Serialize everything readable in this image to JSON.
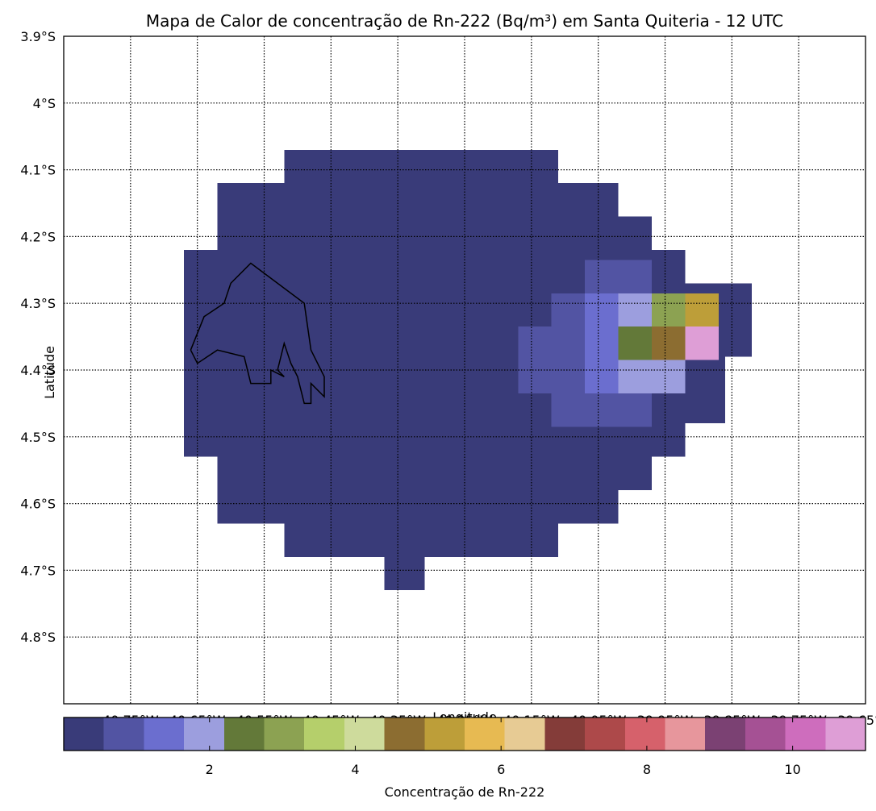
{
  "chart_data": {
    "type": "heatmap",
    "title": "Mapa de Calor de concentração de Rn-222 (Bq/m³) em Santa Quiteria - 12 UTC",
    "xlabel": "Longitude",
    "ylabel": "Latitude",
    "xlim": [
      -40.85,
      -39.65
    ],
    "ylim": [
      -4.9,
      -3.9
    ],
    "grid": true,
    "x_ticks": [
      {
        "value": -40.75,
        "label": "40.75°W"
      },
      {
        "value": -40.65,
        "label": "40.65°W"
      },
      {
        "value": -40.55,
        "label": "40.55°W"
      },
      {
        "value": -40.45,
        "label": "40.45°W"
      },
      {
        "value": -40.35,
        "label": "40.35°W"
      },
      {
        "value": -40.25,
        "label": "40.25°W"
      },
      {
        "value": -40.15,
        "label": "40.15°W"
      },
      {
        "value": -40.05,
        "label": "40.05°W"
      },
      {
        "value": -39.95,
        "label": "39.95°W"
      },
      {
        "value": -39.85,
        "label": "39.85°W"
      },
      {
        "value": -39.75,
        "label": "39.75°W"
      },
      {
        "value": -39.65,
        "label": "39.65°W"
      }
    ],
    "y_ticks": [
      {
        "value": -3.9,
        "label": "3.9°S"
      },
      {
        "value": -4.0,
        "label": "4°S"
      },
      {
        "value": -4.1,
        "label": "4.1°S"
      },
      {
        "value": -4.2,
        "label": "4.2°S"
      },
      {
        "value": -4.3,
        "label": "4.3°S"
      },
      {
        "value": -4.4,
        "label": "4.4°S"
      },
      {
        "value": -4.5,
        "label": "4.5°S"
      },
      {
        "value": -4.6,
        "label": "4.6°S"
      },
      {
        "value": -4.7,
        "label": "4.7°S"
      },
      {
        "value": -4.8,
        "label": "4.8°S"
      }
    ],
    "cells": [
      {
        "lon0": -40.52,
        "lon1": -40.11,
        "lat_top": -4.07,
        "lat_bot": -4.12,
        "value": 0.3
      },
      {
        "lon0": -40.62,
        "lon1": -40.02,
        "lat_top": -4.12,
        "lat_bot": -4.17,
        "value": 0.3
      },
      {
        "lon0": -40.62,
        "lon1": -39.97,
        "lat_top": -4.17,
        "lat_bot": -4.22,
        "value": 0.3
      },
      {
        "lon0": -40.67,
        "lon1": -39.92,
        "lat_top": -4.22,
        "lat_bot": -4.27,
        "value": 0.3
      },
      {
        "lon0": -40.67,
        "lon1": -39.82,
        "lat_top": -4.27,
        "lat_bot": -4.38,
        "value": 0.3
      },
      {
        "lon0": -40.67,
        "lon1": -39.86,
        "lat_top": -4.38,
        "lat_bot": -4.43,
        "value": 0.3
      },
      {
        "lon0": -40.67,
        "lon1": -39.86,
        "lat_top": -4.43,
        "lat_bot": -4.48,
        "value": 0.3
      },
      {
        "lon0": -40.67,
        "lon1": -39.92,
        "lat_top": -4.48,
        "lat_bot": -4.53,
        "value": 0.3
      },
      {
        "lon0": -40.62,
        "lon1": -39.97,
        "lat_top": -4.53,
        "lat_bot": -4.58,
        "value": 0.3
      },
      {
        "lon0": -40.62,
        "lon1": -40.02,
        "lat_top": -4.58,
        "lat_bot": -4.63,
        "value": 0.3
      },
      {
        "lon0": -40.52,
        "lon1": -40.11,
        "lat_top": -4.63,
        "lat_bot": -4.68,
        "value": 0.3
      },
      {
        "lon0": -40.37,
        "lon1": -40.31,
        "lat_top": -4.68,
        "lat_bot": -4.73,
        "value": 0.3
      },
      {
        "lon0": -40.07,
        "lon1": -39.97,
        "lat_top": -4.235,
        "lat_bot": -4.285,
        "value": 0.9
      },
      {
        "lon0": -40.12,
        "lon1": -40.07,
        "lat_top": -4.285,
        "lat_bot": -4.335,
        "value": 0.9
      },
      {
        "lon0": -40.17,
        "lon1": -40.07,
        "lat_top": -4.335,
        "lat_bot": -4.385,
        "value": 0.9
      },
      {
        "lon0": -40.17,
        "lon1": -40.07,
        "lat_top": -4.385,
        "lat_bot": -4.435,
        "value": 0.9
      },
      {
        "lon0": -40.12,
        "lon1": -39.97,
        "lat_top": -4.435,
        "lat_bot": -4.485,
        "value": 0.9
      },
      {
        "lon0": -40.07,
        "lon1": -40.02,
        "lat_top": -4.285,
        "lat_bot": -4.335,
        "value": 1.5
      },
      {
        "lon0": -40.07,
        "lon1": -40.02,
        "lat_top": -4.335,
        "lat_bot": -4.385,
        "value": 1.5
      },
      {
        "lon0": -40.07,
        "lon1": -40.02,
        "lat_top": -4.385,
        "lat_bot": -4.435,
        "value": 1.5
      },
      {
        "lon0": -39.97,
        "lon1": -39.92,
        "lat_top": -4.385,
        "lat_bot": -4.435,
        "value": 1.5
      },
      {
        "lon0": -40.02,
        "lon1": -39.97,
        "lat_top": -4.285,
        "lat_bot": -4.335,
        "value": 2.0
      },
      {
        "lon0": -39.92,
        "lon1": -39.87,
        "lat_top": -4.335,
        "lat_bot": -4.385,
        "value": 2.0
      },
      {
        "lon0": -40.02,
        "lon1": -39.97,
        "lat_top": -4.385,
        "lat_bot": -4.435,
        "value": 2.0
      },
      {
        "lon0": -39.97,
        "lon1": -39.92,
        "lat_top": -4.385,
        "lat_bot": -4.435,
        "value": 2.0
      },
      {
        "lon0": -40.02,
        "lon1": -39.97,
        "lat_top": -4.335,
        "lat_bot": -4.385,
        "value": 2.6
      },
      {
        "lon0": -39.97,
        "lon1": -39.92,
        "lat_top": -4.285,
        "lat_bot": -4.335,
        "value": 3.1
      },
      {
        "lon0": -39.97,
        "lon1": -39.92,
        "lat_top": -4.335,
        "lat_bot": -4.385,
        "value": 4.8
      },
      {
        "lon0": -39.92,
        "lon1": -39.87,
        "lat_top": -4.285,
        "lat_bot": -4.335,
        "value": 5.3
      },
      {
        "lon0": -39.92,
        "lon1": -39.87,
        "lat_top": -4.335,
        "lat_bot": -4.385,
        "value": 10.9
      }
    ],
    "outline": [
      [
        -40.66,
        -4.37
      ],
      [
        -40.64,
        -4.32
      ],
      [
        -40.61,
        -4.3
      ],
      [
        -40.6,
        -4.27
      ],
      [
        -40.57,
        -4.24
      ],
      [
        -40.49,
        -4.3
      ],
      [
        -40.48,
        -4.37
      ],
      [
        -40.46,
        -4.41
      ],
      [
        -40.46,
        -4.44
      ],
      [
        -40.48,
        -4.42
      ],
      [
        -40.48,
        -4.45
      ],
      [
        -40.49,
        -4.45
      ],
      [
        -40.5,
        -4.41
      ],
      [
        -40.51,
        -4.39
      ],
      [
        -40.52,
        -4.36
      ],
      [
        -40.53,
        -4.4
      ],
      [
        -40.52,
        -4.41
      ],
      [
        -40.54,
        -4.4
      ],
      [
        -40.54,
        -4.42
      ],
      [
        -40.57,
        -4.42
      ],
      [
        -40.58,
        -4.38
      ],
      [
        -40.62,
        -4.37
      ],
      [
        -40.65,
        -4.39
      ],
      [
        -40.66,
        -4.37
      ]
    ],
    "colorbar": {
      "label": "Concentração de Rn-222",
      "vmin": 0,
      "vmax": 11,
      "ticks": [
        {
          "value": 2,
          "label": "2"
        },
        {
          "value": 4,
          "label": "4"
        },
        {
          "value": 6,
          "label": "6"
        },
        {
          "value": 8,
          "label": "8"
        },
        {
          "value": 10,
          "label": "10"
        }
      ],
      "colors": [
        "#393b79",
        "#5254a3",
        "#6b6ecf",
        "#9c9ede",
        "#637939",
        "#8ca252",
        "#b5cf6b",
        "#cedb9c",
        "#8c6d31",
        "#bd9e39",
        "#e7ba52",
        "#e7cb94",
        "#843c39",
        "#ad494a",
        "#d6616b",
        "#e7969c",
        "#7b4173",
        "#a55194",
        "#ce6dbd",
        "#de9ed6"
      ]
    }
  }
}
